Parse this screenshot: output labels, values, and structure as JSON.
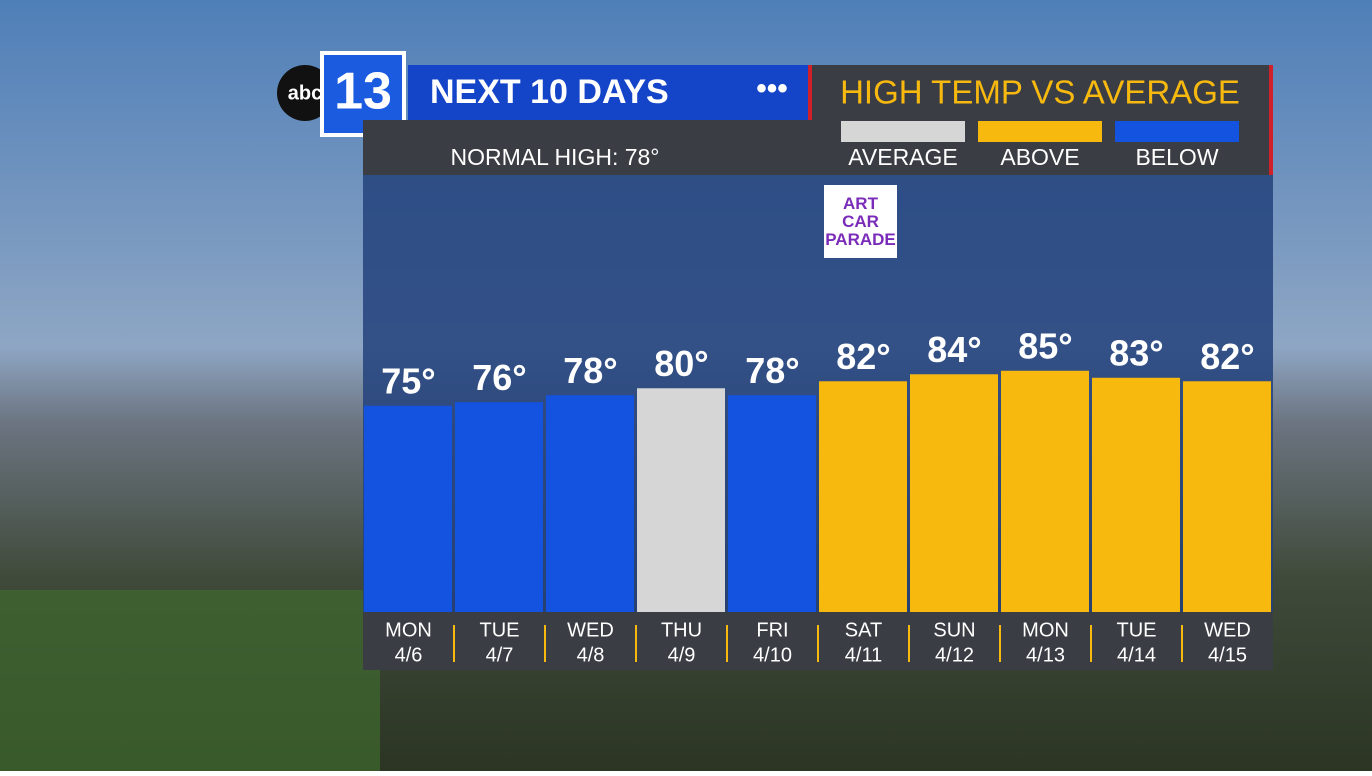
{
  "chart_data": {
    "type": "bar",
    "logo": {
      "network": "abc",
      "channel": "13"
    },
    "title": "NEXT 10 DAYS",
    "subtitle": "HIGH TEMP VS AVERAGE",
    "normal_high": "NORMAL HIGH: 78°",
    "annotation": "ART CAR PARADE",
    "categories": [
      "MON",
      "TUE",
      "WED",
      "THU",
      "FRI",
      "SAT",
      "SUN",
      "MON",
      "TUE",
      "WED"
    ],
    "dates": [
      "4/6",
      "4/7",
      "4/8",
      "4/9",
      "4/10",
      "4/11",
      "4/12",
      "4/13",
      "4/14",
      "4/15"
    ],
    "values": [
      75,
      76,
      78,
      80,
      78,
      82,
      84,
      85,
      83,
      82
    ],
    "value_labels": [
      "75°",
      "76°",
      "78°",
      "80°",
      "78°",
      "82°",
      "84°",
      "85°",
      "83°",
      "82°"
    ],
    "colors": [
      "#1452e0",
      "#1452e0",
      "#1452e0",
      "#d6d6d6",
      "#1452e0",
      "#f8b90f",
      "#f8b90f",
      "#f8b90f",
      "#f8b90f",
      "#f8b90f"
    ],
    "legend": [
      {
        "name": "AVERAGE",
        "color": "#d6d6d6"
      },
      {
        "name": "ABOVE",
        "color": "#f8b90f"
      },
      {
        "name": "BELOW",
        "color": "#1452e0"
      }
    ],
    "ylim": [
      16,
      141
    ]
  }
}
